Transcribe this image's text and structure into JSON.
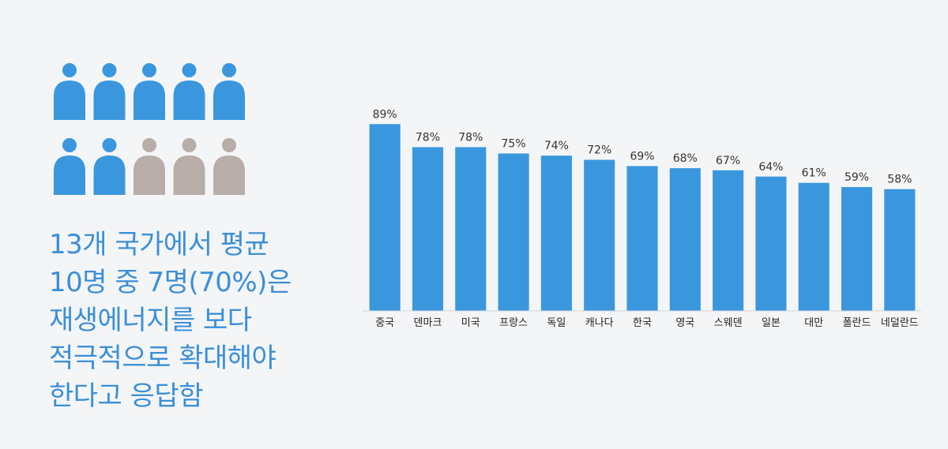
{
  "colors": {
    "accent": "#3a97de",
    "headline": "#3a8fd8",
    "person_highlight": "#3a97de",
    "person_muted": "#b8ada8",
    "axis": "#cfd6dd"
  },
  "icon": {
    "name": "person-icon",
    "total": 10,
    "highlighted": 7
  },
  "headline": {
    "lines": [
      "13개 국가에서 평균",
      "10명 중 7명(70%)은",
      "재생에너지를 보다",
      "적극적으로 확대해야",
      "한다고 응답함"
    ]
  },
  "chart_data": {
    "type": "bar",
    "categories": [
      "중국",
      "덴마크",
      "미국",
      "프랑스",
      "독일",
      "캐나다",
      "한국",
      "영국",
      "스웨덴",
      "일본",
      "대만",
      "폴란드",
      "네덜란드"
    ],
    "values": [
      89,
      78,
      78,
      75,
      74,
      72,
      69,
      68,
      67,
      64,
      61,
      59,
      58
    ],
    "value_labels": [
      "89%",
      "78%",
      "78%",
      "75%",
      "74%",
      "72%",
      "69%",
      "68%",
      "67%",
      "64%",
      "61%",
      "59%",
      "58%"
    ],
    "ylim": [
      0,
      100
    ],
    "grid": false,
    "legend": "none"
  }
}
